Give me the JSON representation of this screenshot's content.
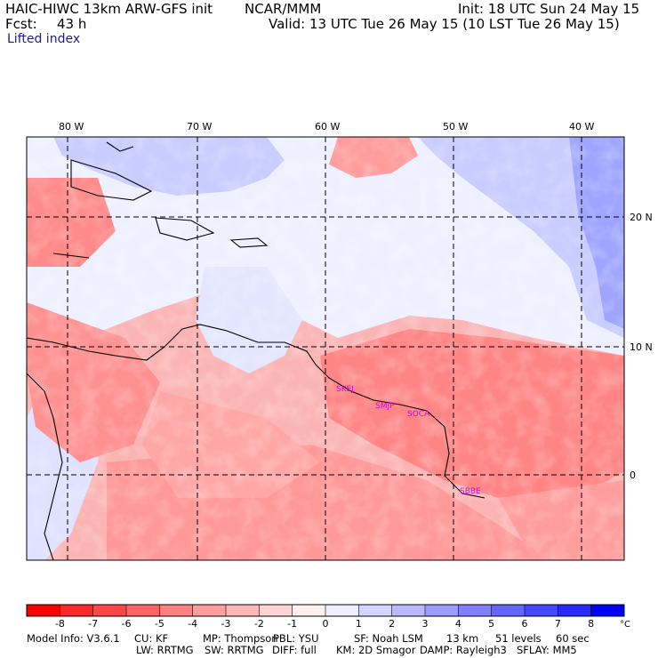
{
  "header": {
    "model_title": "HAIC-HIWC 13km ARW-GFS init",
    "org": "NCAR/MMM",
    "init": "Init: 18 UTC Sun 24 May 15",
    "fcst_label": "Fcst:",
    "fcst_value": "43 h",
    "valid": "Valid: 13 UTC Tue 26 May 15 (10 LST Tue 26 May 15)",
    "field": "Lifted index"
  },
  "map": {
    "lon_labels": [
      "80 W",
      "70 W",
      "60 W",
      "50 W",
      "40 W"
    ],
    "lat_labels": [
      "20 N",
      "10 N",
      "0"
    ],
    "stations": [
      "SKEJ",
      "SMJP",
      "SOCA",
      "SBBE"
    ],
    "station_color": "#e000e0"
  },
  "colorbar": {
    "tick_labels": [
      "-8",
      "-7",
      "-6",
      "-5",
      "-4",
      "-3",
      "-2",
      "-1",
      "0",
      "1",
      "2",
      "3",
      "4",
      "5",
      "6",
      "7",
      "8"
    ],
    "unit": "°C",
    "colors": [
      "#ff0000",
      "#ff2828",
      "#ff4646",
      "#ff6464",
      "#ff8080",
      "#ff9c9c",
      "#ffb8b8",
      "#ffd4d4",
      "#fff0f0",
      "#eeeeff",
      "#d4d4ff",
      "#b8b8ff",
      "#9c9cff",
      "#8080ff",
      "#6464ff",
      "#4646ff",
      "#2828ff",
      "#0000ff"
    ]
  },
  "footer": {
    "line1": [
      "Model Info: V3.6.1",
      "CU: KF",
      "MP: Thompson",
      "PBL: YSU",
      "SF: Noah LSM",
      "13 km",
      "51 levels",
      "60 sec"
    ],
    "line2": [
      "LW: RRTMG",
      "SW: RRTMG",
      "DIFF: full",
      "KM: 2D Smagor",
      "DAMP: Rayleigh3",
      "SFLAY: MM5"
    ]
  }
}
